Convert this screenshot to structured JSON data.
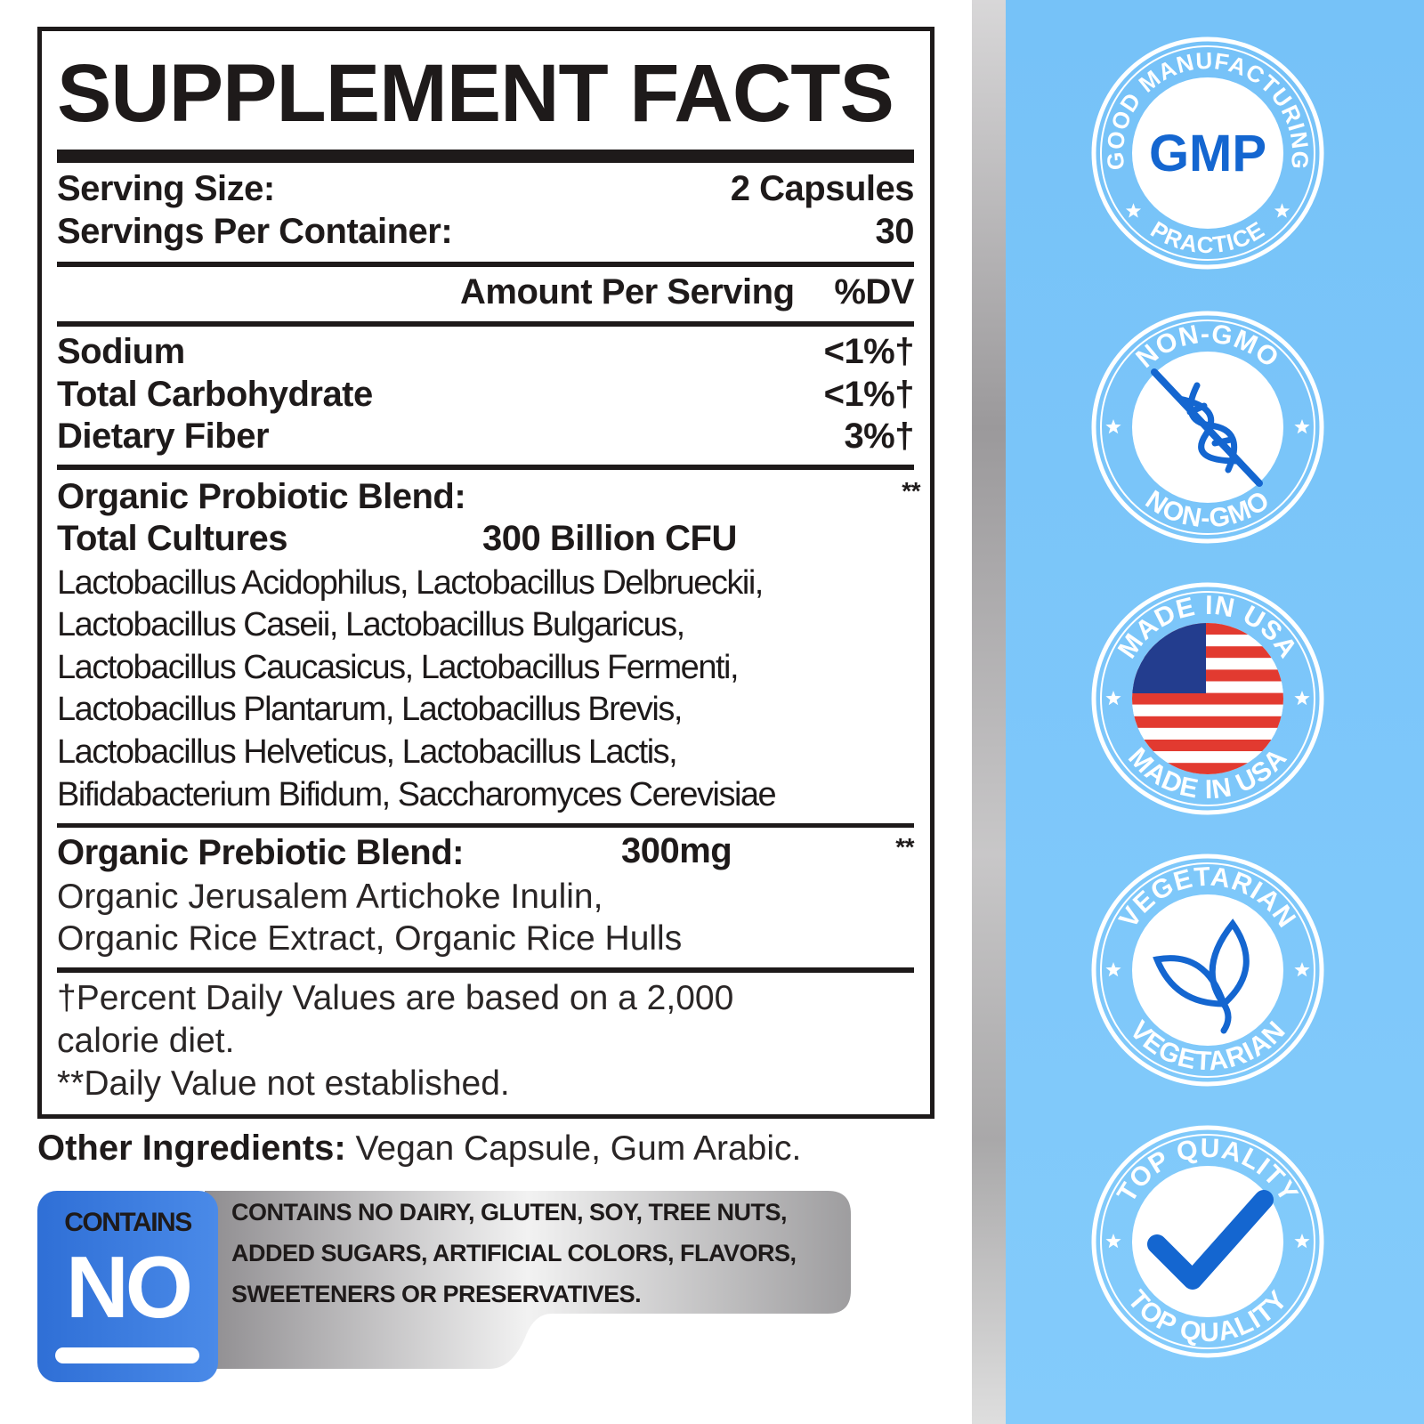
{
  "title": "SUPPLEMENT FACTS",
  "serving": {
    "size_label": "Serving Size:",
    "size_value": "2 Capsules",
    "per_container_label": "Servings Per Container:",
    "per_container_value": "30"
  },
  "header": {
    "amount_per_serving": "Amount Per Serving",
    "dv": "%DV"
  },
  "nutrients": [
    {
      "name": "Sodium",
      "dv": "<1%†"
    },
    {
      "name": "Total Carbohydrate",
      "dv": "<1%†"
    },
    {
      "name": "Dietary Fiber",
      "dv": "3%†"
    }
  ],
  "probiotic": {
    "title": "Organic Probiotic Blend:",
    "dv": "**",
    "cultures_label": "Total Cultures",
    "cultures_value": "300 Billion CFU",
    "lines": [
      "Lactobacillus Acidophilus, Lactobacillus Delbrueckii,",
      "Lactobacillus Caseii, Lactobacillus Bulgaricus,",
      "Lactobacillus Caucasicus, Lactobacillus Fermenti,",
      "Lactobacillus Plantarum, Lactobacillus Brevis,",
      "Lactobacillus Helveticus, Lactobacillus Lactis,",
      "Bifidabacterium Bifidum, Saccharomyces Cerevisiae"
    ]
  },
  "prebiotic": {
    "title": "Organic Prebiotic Blend:",
    "amount": "300mg",
    "dv": "**",
    "lines": [
      "Organic Jerusalem Artichoke Inulin,",
      "Organic Rice Extract, Organic Rice Hulls"
    ]
  },
  "footnotes": [
    "†Percent Daily Values are based on a 2,000",
    "calorie diet.",
    "**Daily Value not established."
  ],
  "other_ingredients": {
    "label": "Other Ingredients:",
    "value": " Vegan Capsule, Gum Arabic."
  },
  "contains_no": {
    "top": "CONTAINS",
    "big": "NO",
    "lines": [
      "CONTAINS NO DAIRY, GLUTEN, SOY, TREE NUTS,",
      "ADDED SUGARS, ARTIFICIAL COLORS, FLAVORS,",
      "SWEETENERS OR PRESERVATIVES."
    ]
  },
  "colors": {
    "panel_blue": "#7cc6f9",
    "badge_blue": "#1466d0",
    "text_dark": "#1e1a1a",
    "contains_blue": "#3a7ee0"
  },
  "badges": [
    {
      "id": "gmp",
      "top_text": "GOOD MANUFACTURING",
      "bottom_text": "PRACTICE",
      "center_text": "GMP",
      "icon": "gmp-text"
    },
    {
      "id": "non-gmo",
      "top_text": "NON-GMO",
      "bottom_text": "NON-GMO",
      "icon": "crossed-dna-icon"
    },
    {
      "id": "made-in-usa",
      "top_text": "MADE IN USA",
      "bottom_text": "MADE IN USA",
      "icon": "us-flag-icon"
    },
    {
      "id": "vegetarian",
      "top_text": "VEGETARIAN",
      "bottom_text": "VEGETARIAN",
      "icon": "leaf-icon"
    },
    {
      "id": "top-quality",
      "top_text": "TOP QUALITY",
      "bottom_text": "TOP QUALITY",
      "icon": "checkmark-icon"
    }
  ]
}
